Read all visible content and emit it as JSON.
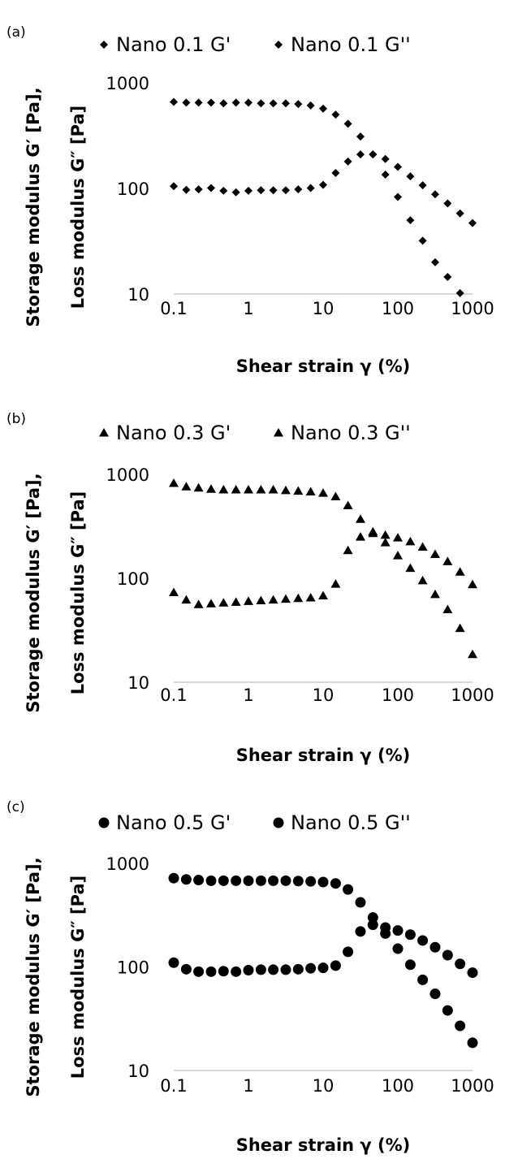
{
  "chart_data": [
    {
      "type": "scatter",
      "panel_label": "(a)",
      "marker": "diamond",
      "xscale": "log",
      "yscale": "log",
      "xlim": [
        0.1,
        1000
      ],
      "ylim": [
        10,
        1000
      ],
      "x_ticks": [
        "0.1",
        "1",
        "10",
        "100",
        "1000"
      ],
      "y_ticks": [
        "1000",
        "100",
        "10"
      ],
      "xlabel": "Shear strain γ (%)",
      "ylabel": [
        "Storage modulus G′ [Pa],",
        "Loss modulus G″ [Pa]"
      ],
      "legend_position": "top",
      "x": [
        0.1,
        0.147,
        0.215,
        0.316,
        0.464,
        0.681,
        1,
        1.47,
        2.15,
        3.16,
        4.64,
        6.81,
        10,
        14.7,
        21.5,
        31.6,
        46.4,
        68.1,
        100,
        147,
        215,
        316,
        464,
        681,
        1000
      ],
      "series": [
        {
          "name": "Nano 0.1 G'",
          "values": [
            660,
            650,
            650,
            650,
            640,
            650,
            650,
            640,
            640,
            640,
            630,
            610,
            570,
            500,
            410,
            310,
            210,
            135,
            83,
            50,
            32,
            20,
            14.5,
            10.2,
            null
          ]
        },
        {
          "name": "Nano 0.1 G''",
          "values": [
            105,
            97,
            98,
            101,
            95,
            92,
            95,
            96,
            96,
            96,
            98,
            101,
            108,
            140,
            180,
            210,
            210,
            190,
            160,
            130,
            107,
            88,
            72,
            58,
            47
          ]
        }
      ]
    },
    {
      "type": "scatter",
      "panel_label": "(b)",
      "marker": "triangle",
      "xscale": "log",
      "yscale": "log",
      "xlim": [
        0.1,
        1000
      ],
      "ylim": [
        10,
        1000
      ],
      "x_ticks": [
        "0.1",
        "1",
        "10",
        "100",
        "1000"
      ],
      "y_ticks": [
        "1000",
        "100",
        "10"
      ],
      "xlabel": "Shear strain γ (%)",
      "ylabel": [
        "Storage modulus G′ [Pa],",
        "Loss modulus G″ [Pa]"
      ],
      "legend_position": "top",
      "x": [
        0.1,
        0.147,
        0.215,
        0.316,
        0.464,
        0.681,
        1,
        1.47,
        2.15,
        3.16,
        4.64,
        6.81,
        10,
        14.7,
        21.5,
        31.6,
        46.4,
        68.1,
        100,
        147,
        215,
        316,
        464,
        681,
        1000
      ],
      "series": [
        {
          "name": "Nano 0.3 G'",
          "values": [
            820,
            760,
            740,
            720,
            710,
            710,
            710,
            710,
            710,
            700,
            690,
            680,
            660,
            610,
            500,
            370,
            270,
            220,
            165,
            125,
            95,
            70,
            50,
            33,
            18.5
          ]
        },
        {
          "name": "Nano 0.3 G''",
          "values": [
            73,
            62,
            56,
            57,
            58,
            59,
            60,
            61,
            62,
            63,
            64,
            65,
            68,
            88,
            185,
            250,
            280,
            260,
            245,
            225,
            200,
            170,
            145,
            115,
            87
          ]
        }
      ]
    },
    {
      "type": "scatter",
      "panel_label": "(c)",
      "marker": "circle",
      "xscale": "log",
      "yscale": "log",
      "xlim": [
        0.1,
        1000
      ],
      "ylim": [
        10,
        1000
      ],
      "x_ticks": [
        "0.1",
        "1",
        "10",
        "100",
        "1000"
      ],
      "y_ticks": [
        "1000",
        "100",
        "10"
      ],
      "xlabel": "Shear strain γ (%)",
      "ylabel": [
        "Storage modulus G′ [Pa],",
        "Loss modulus G″ [Pa]"
      ],
      "legend_position": "top",
      "x": [
        0.1,
        0.147,
        0.215,
        0.316,
        0.464,
        0.681,
        1,
        1.47,
        2.15,
        3.16,
        4.64,
        6.81,
        10,
        14.7,
        21.5,
        31.6,
        46.4,
        68.1,
        100,
        147,
        215,
        316,
        464,
        681,
        1000
      ],
      "series": [
        {
          "name": "Nano 0.5 G'",
          "values": [
            720,
            700,
            690,
            680,
            680,
            680,
            680,
            680,
            680,
            680,
            675,
            670,
            660,
            640,
            560,
            420,
            300,
            210,
            150,
            105,
            75,
            55,
            38,
            27,
            18.5
          ]
        },
        {
          "name": "Nano 0.5 G''",
          "values": [
            110,
            95,
            90,
            90,
            91,
            90,
            93,
            94,
            94,
            94,
            95,
            97,
            98,
            103,
            140,
            220,
            255,
            240,
            225,
            205,
            180,
            155,
            130,
            107,
            88
          ]
        }
      ]
    }
  ]
}
